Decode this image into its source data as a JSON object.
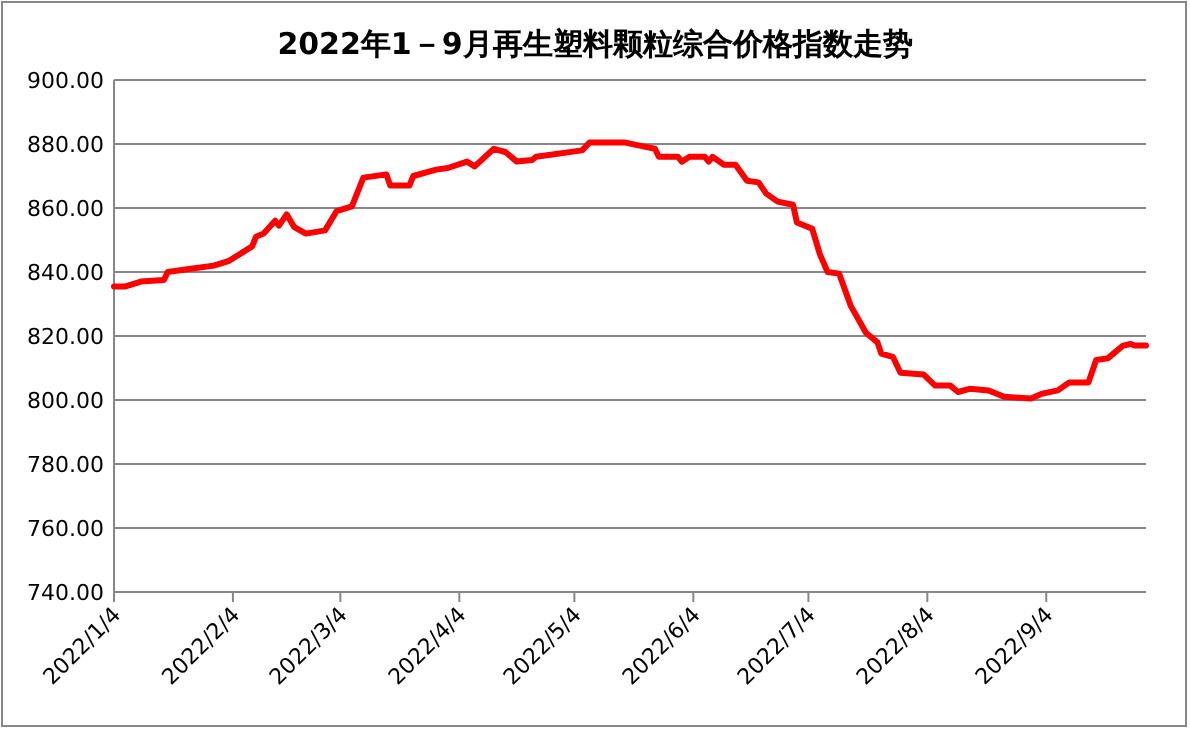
{
  "chart_data": {
    "type": "line",
    "title": "2022年1－9月再生塑料颗粒综合价格指数走势",
    "color": "#ff0000",
    "grid": "y",
    "xlim": [
      "2022-01-04",
      "2022-09-30"
    ],
    "xticks": [
      {
        "value": "2022-01-04",
        "label": "2022/1/4"
      },
      {
        "value": "2022-02-04",
        "label": "2022/2/4"
      },
      {
        "value": "2022-03-04",
        "label": "2022/3/4"
      },
      {
        "value": "2022-04-04",
        "label": "2022/4/4"
      },
      {
        "value": "2022-05-04",
        "label": "2022/5/4"
      },
      {
        "value": "2022-06-04",
        "label": "2022/6/4"
      },
      {
        "value": "2022-07-04",
        "label": "2022/7/4"
      },
      {
        "value": "2022-08-04",
        "label": "2022/8/4"
      },
      {
        "value": "2022-09-04",
        "label": "2022/9/4"
      }
    ],
    "ylim": [
      740,
      900
    ],
    "yticks": [
      {
        "value": 740,
        "label": "740.00"
      },
      {
        "value": 760,
        "label": "760.00"
      },
      {
        "value": 780,
        "label": "780.00"
      },
      {
        "value": 800,
        "label": "800.00"
      },
      {
        "value": 820,
        "label": "820.00"
      },
      {
        "value": 840,
        "label": "840.00"
      },
      {
        "value": 860,
        "label": "860.00"
      },
      {
        "value": 880,
        "label": "880.00"
      },
      {
        "value": 900,
        "label": "900.00"
      }
    ],
    "x": [
      "2022-01-04",
      "2022-01-07",
      "2022-01-11",
      "2022-01-17",
      "2022-01-18",
      "2022-01-24",
      "2022-01-30",
      "2022-02-03",
      "2022-02-09",
      "2022-02-10",
      "2022-02-12",
      "2022-02-15",
      "2022-02-16",
      "2022-02-18",
      "2022-02-20",
      "2022-02-23",
      "2022-02-28",
      "2022-03-03",
      "2022-03-07",
      "2022-03-10",
      "2022-03-16",
      "2022-03-17",
      "2022-03-22",
      "2022-03-23",
      "2022-03-29",
      "2022-04-01",
      "2022-04-06",
      "2022-04-08",
      "2022-04-13",
      "2022-04-16",
      "2022-04-19",
      "2022-04-23",
      "2022-04-24",
      "2022-05-06",
      "2022-05-08",
      "2022-05-11",
      "2022-05-17",
      "2022-05-21",
      "2022-05-25",
      "2022-05-26",
      "2022-05-31",
      "2022-06-01",
      "2022-06-03",
      "2022-06-07",
      "2022-06-08",
      "2022-06-09",
      "2022-06-12",
      "2022-06-15",
      "2022-06-18",
      "2022-06-21",
      "2022-06-23",
      "2022-06-26",
      "2022-06-30",
      "2022-07-01",
      "2022-07-05",
      "2022-07-07",
      "2022-07-09",
      "2022-07-12",
      "2022-07-15",
      "2022-07-19",
      "2022-07-22",
      "2022-07-23",
      "2022-07-26",
      "2022-07-28",
      "2022-08-03",
      "2022-08-06",
      "2022-08-10",
      "2022-08-12",
      "2022-08-15",
      "2022-08-20",
      "2022-08-24",
      "2022-08-31",
      "2022-09-03",
      "2022-09-07",
      "2022-09-10",
      "2022-09-15",
      "2022-09-17",
      "2022-09-20",
      "2022-09-24",
      "2022-09-26",
      "2022-09-27",
      "2022-09-30"
    ],
    "values": [
      835.5,
      835.5,
      837,
      837.5,
      840,
      841,
      842,
      843.5,
      848,
      851,
      852,
      856,
      854.5,
      858,
      854,
      852,
      853,
      859,
      860.5,
      869.5,
      870.5,
      867,
      867,
      870,
      872,
      872.5,
      874.5,
      873,
      878.5,
      877.5,
      874.5,
      875,
      876,
      878,
      880.5,
      880.5,
      880.5,
      879.5,
      878.5,
      876,
      876,
      874.5,
      876,
      876,
      874.5,
      876,
      873.5,
      873.5,
      868.5,
      868,
      864.5,
      862,
      861,
      855.5,
      853.5,
      845.5,
      840,
      839.5,
      829.5,
      821,
      818,
      814.5,
      813.5,
      808.5,
      808,
      804.5,
      804.5,
      802.5,
      803.5,
      803,
      801,
      800.5,
      802,
      803,
      805.5,
      805.5,
      812.5,
      813,
      817,
      817.5,
      817,
      817
    ]
  }
}
